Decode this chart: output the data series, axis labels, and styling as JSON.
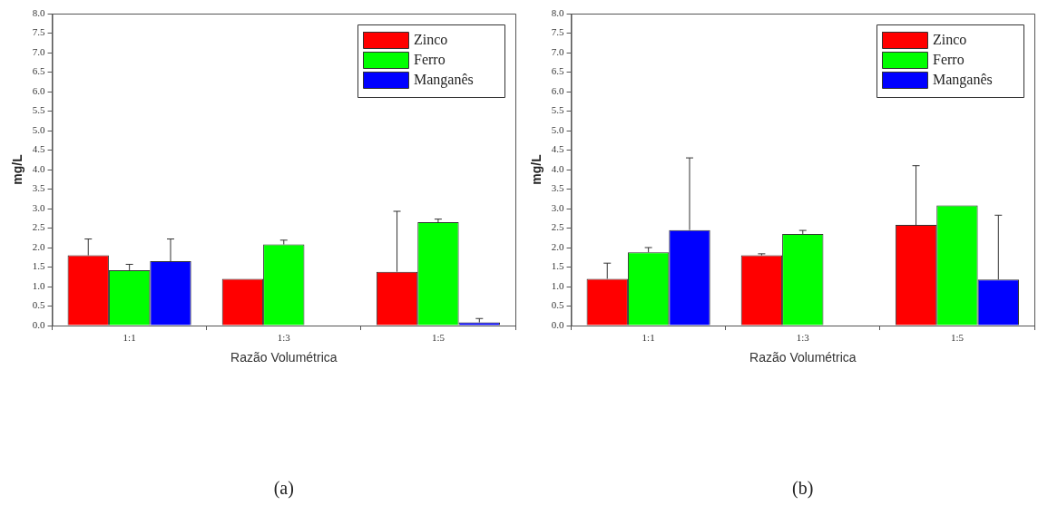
{
  "chart_data": [
    {
      "type": "bar",
      "xlabel": "Razão Volumétrica",
      "ylabel": "mg/L",
      "categories": [
        "1:1",
        "1:3",
        "1:5"
      ],
      "series": [
        {
          "name": "Zinco",
          "color": "#ff0000",
          "values": [
            1.8,
            1.2,
            1.38
          ],
          "errors": [
            [
              1.8,
              2.22
            ],
            null,
            [
              1.38,
              2.93
            ]
          ]
        },
        {
          "name": "Ferro",
          "color": "#00ff00",
          "values": [
            1.42,
            2.08,
            2.65
          ],
          "errors": [
            [
              1.42,
              1.57
            ],
            [
              2.08,
              2.19
            ],
            [
              2.65,
              2.73
            ]
          ]
        },
        {
          "name": "Manganês",
          "color": "#0000ff",
          "values": [
            1.65,
            null,
            0.08
          ],
          "errors": [
            [
              1.65,
              2.22
            ],
            null,
            [
              0.08,
              0.18
            ]
          ]
        }
      ],
      "ylim": [
        0,
        8
      ],
      "yticks": [
        {
          "value": 0,
          "label": "0.0"
        },
        {
          "value": 0.5,
          "label": "0.5"
        },
        {
          "value": 1,
          "label": "1.0"
        },
        {
          "value": 1.5,
          "label": "1.5"
        },
        {
          "value": 2,
          "label": "2.0"
        },
        {
          "value": 2.5,
          "label": "2.5"
        },
        {
          "value": 3,
          "label": "3.0"
        },
        {
          "value": 3.5,
          "label": "3.5"
        },
        {
          "value": 4,
          "label": "4.0"
        },
        {
          "value": 4.5,
          "label": "4.5"
        },
        {
          "value": 5,
          "label": "5.0"
        },
        {
          "value": 5.5,
          "label": "5.5"
        },
        {
          "value": 6,
          "label": "6.0"
        },
        {
          "value": 6.5,
          "label": "6.5"
        },
        {
          "value": 7,
          "label": "7.0"
        },
        {
          "value": 7.5,
          "label": "7.5"
        },
        {
          "value": 8,
          "label": "8.0"
        }
      ],
      "grid": false,
      "legend": "top right",
      "annotations": [
        "(a)"
      ]
    },
    {
      "type": "bar",
      "xlabel": "Razão Volumétrica",
      "ylabel": "mg/L",
      "categories": [
        "1:1",
        "1:3",
        "1:5"
      ],
      "series": [
        {
          "name": "Zinco",
          "color": "#ff0000",
          "values": [
            1.2,
            1.8,
            2.58
          ],
          "errors": [
            [
              1.2,
              1.6
            ],
            [
              1.8,
              1.84
            ],
            [
              2.58,
              4.1
            ]
          ]
        },
        {
          "name": "Ferro",
          "color": "#00ff00",
          "values": [
            1.88,
            2.35,
            3.08
          ],
          "errors": [
            [
              1.88,
              2.0
            ],
            [
              2.35,
              2.44
            ],
            null
          ]
        },
        {
          "name": "Manganês",
          "color": "#0000ff",
          "values": [
            2.45,
            null,
            1.18
          ],
          "errors": [
            [
              2.45,
              4.3
            ],
            null,
            [
              1.18,
              2.83
            ]
          ]
        }
      ],
      "ylim": [
        0,
        8
      ],
      "yticks": [
        {
          "value": 0,
          "label": "0.0"
        },
        {
          "value": 0.5,
          "label": "0.5"
        },
        {
          "value": 1,
          "label": "1.0"
        },
        {
          "value": 1.5,
          "label": "1.5"
        },
        {
          "value": 2,
          "label": "2.0"
        },
        {
          "value": 2.5,
          "label": "2.5"
        },
        {
          "value": 3,
          "label": "3.0"
        },
        {
          "value": 3.5,
          "label": "3.5"
        },
        {
          "value": 4,
          "label": "4.0"
        },
        {
          "value": 4.5,
          "label": "4.5"
        },
        {
          "value": 5,
          "label": "5.0"
        },
        {
          "value": 5.5,
          "label": "5.5"
        },
        {
          "value": 6,
          "label": "6.0"
        },
        {
          "value": 6.5,
          "label": "6.5"
        },
        {
          "value": 7,
          "label": "7.0"
        },
        {
          "value": 7.5,
          "label": "7.5"
        },
        {
          "value": 8,
          "label": "8.0"
        }
      ],
      "grid": false,
      "legend": "top right",
      "annotations": [
        "(b)"
      ]
    }
  ]
}
